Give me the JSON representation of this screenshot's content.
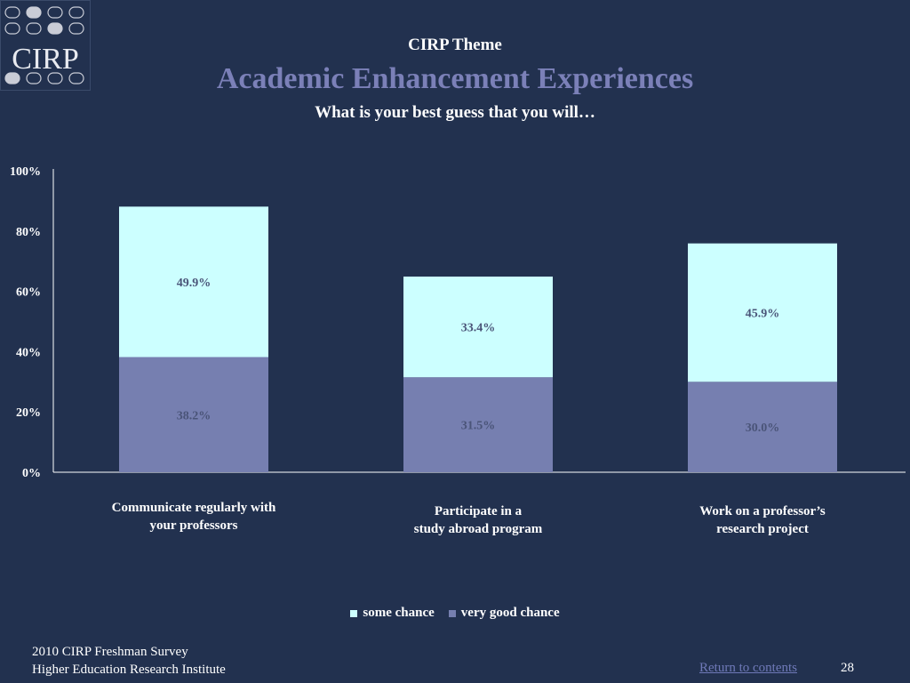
{
  "logo": {
    "text": "CIRP"
  },
  "header": {
    "theme": "CIRP Theme",
    "title": "Academic Enhancement Experiences",
    "question": "What is your best guess that you will…"
  },
  "colors": {
    "background": "#22314f",
    "some_chance": "#ccffff",
    "very_good_chance": "#767fb0",
    "title": "#7b80b8",
    "link": "#6f79b8"
  },
  "chart_data": {
    "type": "bar",
    "stacked": true,
    "categories": [
      [
        "Communicate regularly with",
        "your professors"
      ],
      [
        "Participate in a",
        "study abroad program"
      ],
      [
        "Work on a professor’s",
        "research project"
      ]
    ],
    "series": [
      {
        "name": "very good chance",
        "values": [
          38.2,
          31.5,
          30.0
        ],
        "labels": [
          "38.2%",
          "31.5%",
          "30.0%"
        ]
      },
      {
        "name": "some chance",
        "values": [
          49.9,
          33.4,
          45.9
        ],
        "labels": [
          "49.9%",
          "33.4%",
          "45.9%"
        ]
      }
    ],
    "ylim": [
      0,
      100
    ],
    "yticks": [
      "0%",
      "20%",
      "40%",
      "60%",
      "80%",
      "100%"
    ],
    "legend": [
      "some chance",
      "very good chance"
    ],
    "legend_position": "bottom",
    "grid": false
  },
  "footer": {
    "line1": "2010 CIRP Freshman Survey",
    "line2": "Higher Education Research Institute",
    "return_link": "Return to contents",
    "page_number": "28"
  }
}
